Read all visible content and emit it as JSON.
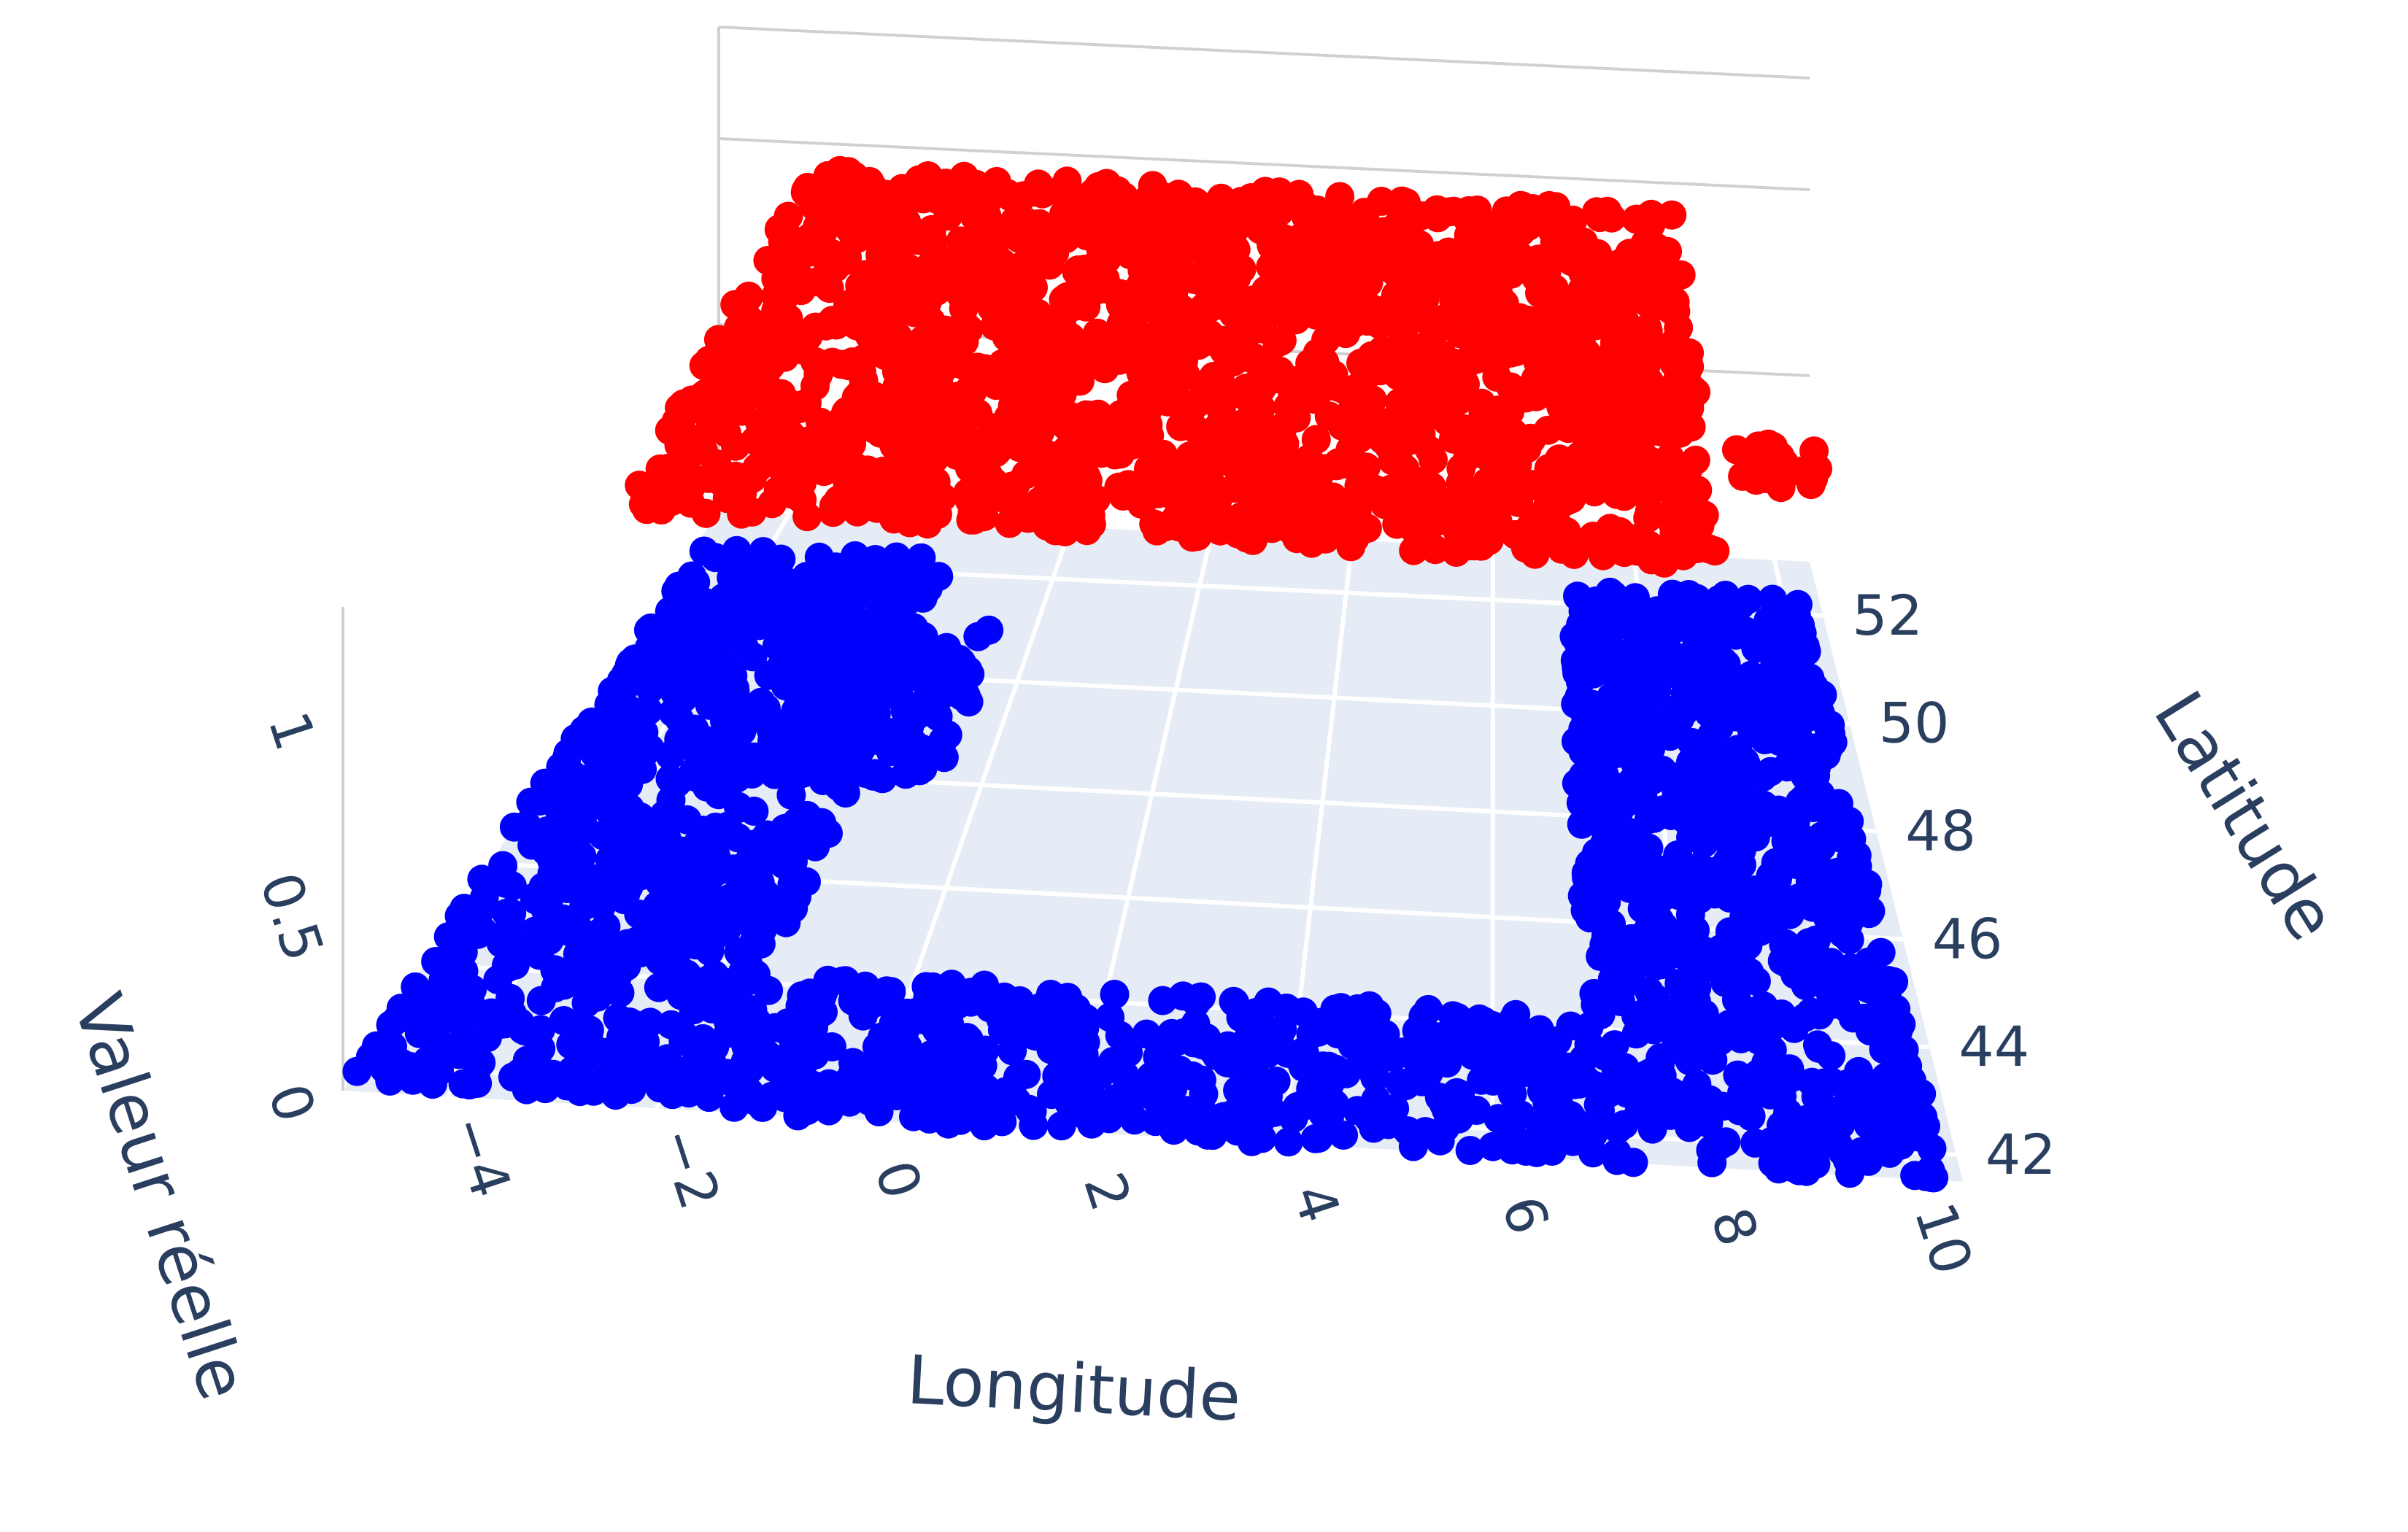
{
  "chart_data": {
    "type": "scatter",
    "projection": "3d",
    "title": "",
    "axes": {
      "x": {
        "label": "Longitude",
        "range": [
          -5,
          10.5
        ],
        "ticks": [
          -4,
          -2,
          0,
          2,
          4,
          6,
          8,
          10
        ],
        "tick_labels": [
          "−4",
          "−2",
          "0",
          "2",
          "4",
          "6",
          "8",
          "10"
        ]
      },
      "y": {
        "label": "Latitude",
        "range": [
          41.5,
          53
        ],
        "ticks": [
          42,
          44,
          46,
          48,
          50,
          52
        ],
        "tick_labels": [
          "42",
          "44",
          "46",
          "48",
          "50",
          "52"
        ]
      },
      "z": {
        "label": "Valeur réelle",
        "range": [
          0,
          1.3
        ],
        "ticks": [
          0,
          0.5,
          1
        ],
        "tick_labels": [
          "0",
          "0.5",
          "1"
        ]
      }
    },
    "grid": true,
    "legend": false,
    "series": [
      {
        "z_value": 0,
        "color": "#0000ff",
        "approximate": true,
        "regions": [
          {
            "x_range": [
              -5,
              -1.5
            ],
            "y_range": [
              41.7,
              52.3
            ]
          },
          {
            "x_range": [
              7,
              10.3
            ],
            "y_range": [
              41.5,
              52.3
            ]
          },
          {
            "x_range": [
              -1.5,
              7
            ],
            "y_range": [
              41.5,
              44.2
            ]
          },
          {
            "x_range": [
              -2.5,
              -0.5
            ],
            "y_range": [
              48,
              51
            ]
          }
        ]
      },
      {
        "z_value": 1,
        "color": "#ff0000",
        "approximate": true,
        "regions": [
          {
            "x_range": [
              -3.5,
              8.5
            ],
            "y_range": [
              45.8,
              52.5
            ]
          },
          {
            "x_range": [
              8.8,
              9.8
            ],
            "y_range": [
              47.2,
              48.2
            ]
          }
        ]
      }
    ],
    "colors": {
      "floor": "#e5ecf6",
      "grid": "#ffffff",
      "wall_line": "#d0d0d0",
      "text": "#2a3f5f"
    }
  }
}
